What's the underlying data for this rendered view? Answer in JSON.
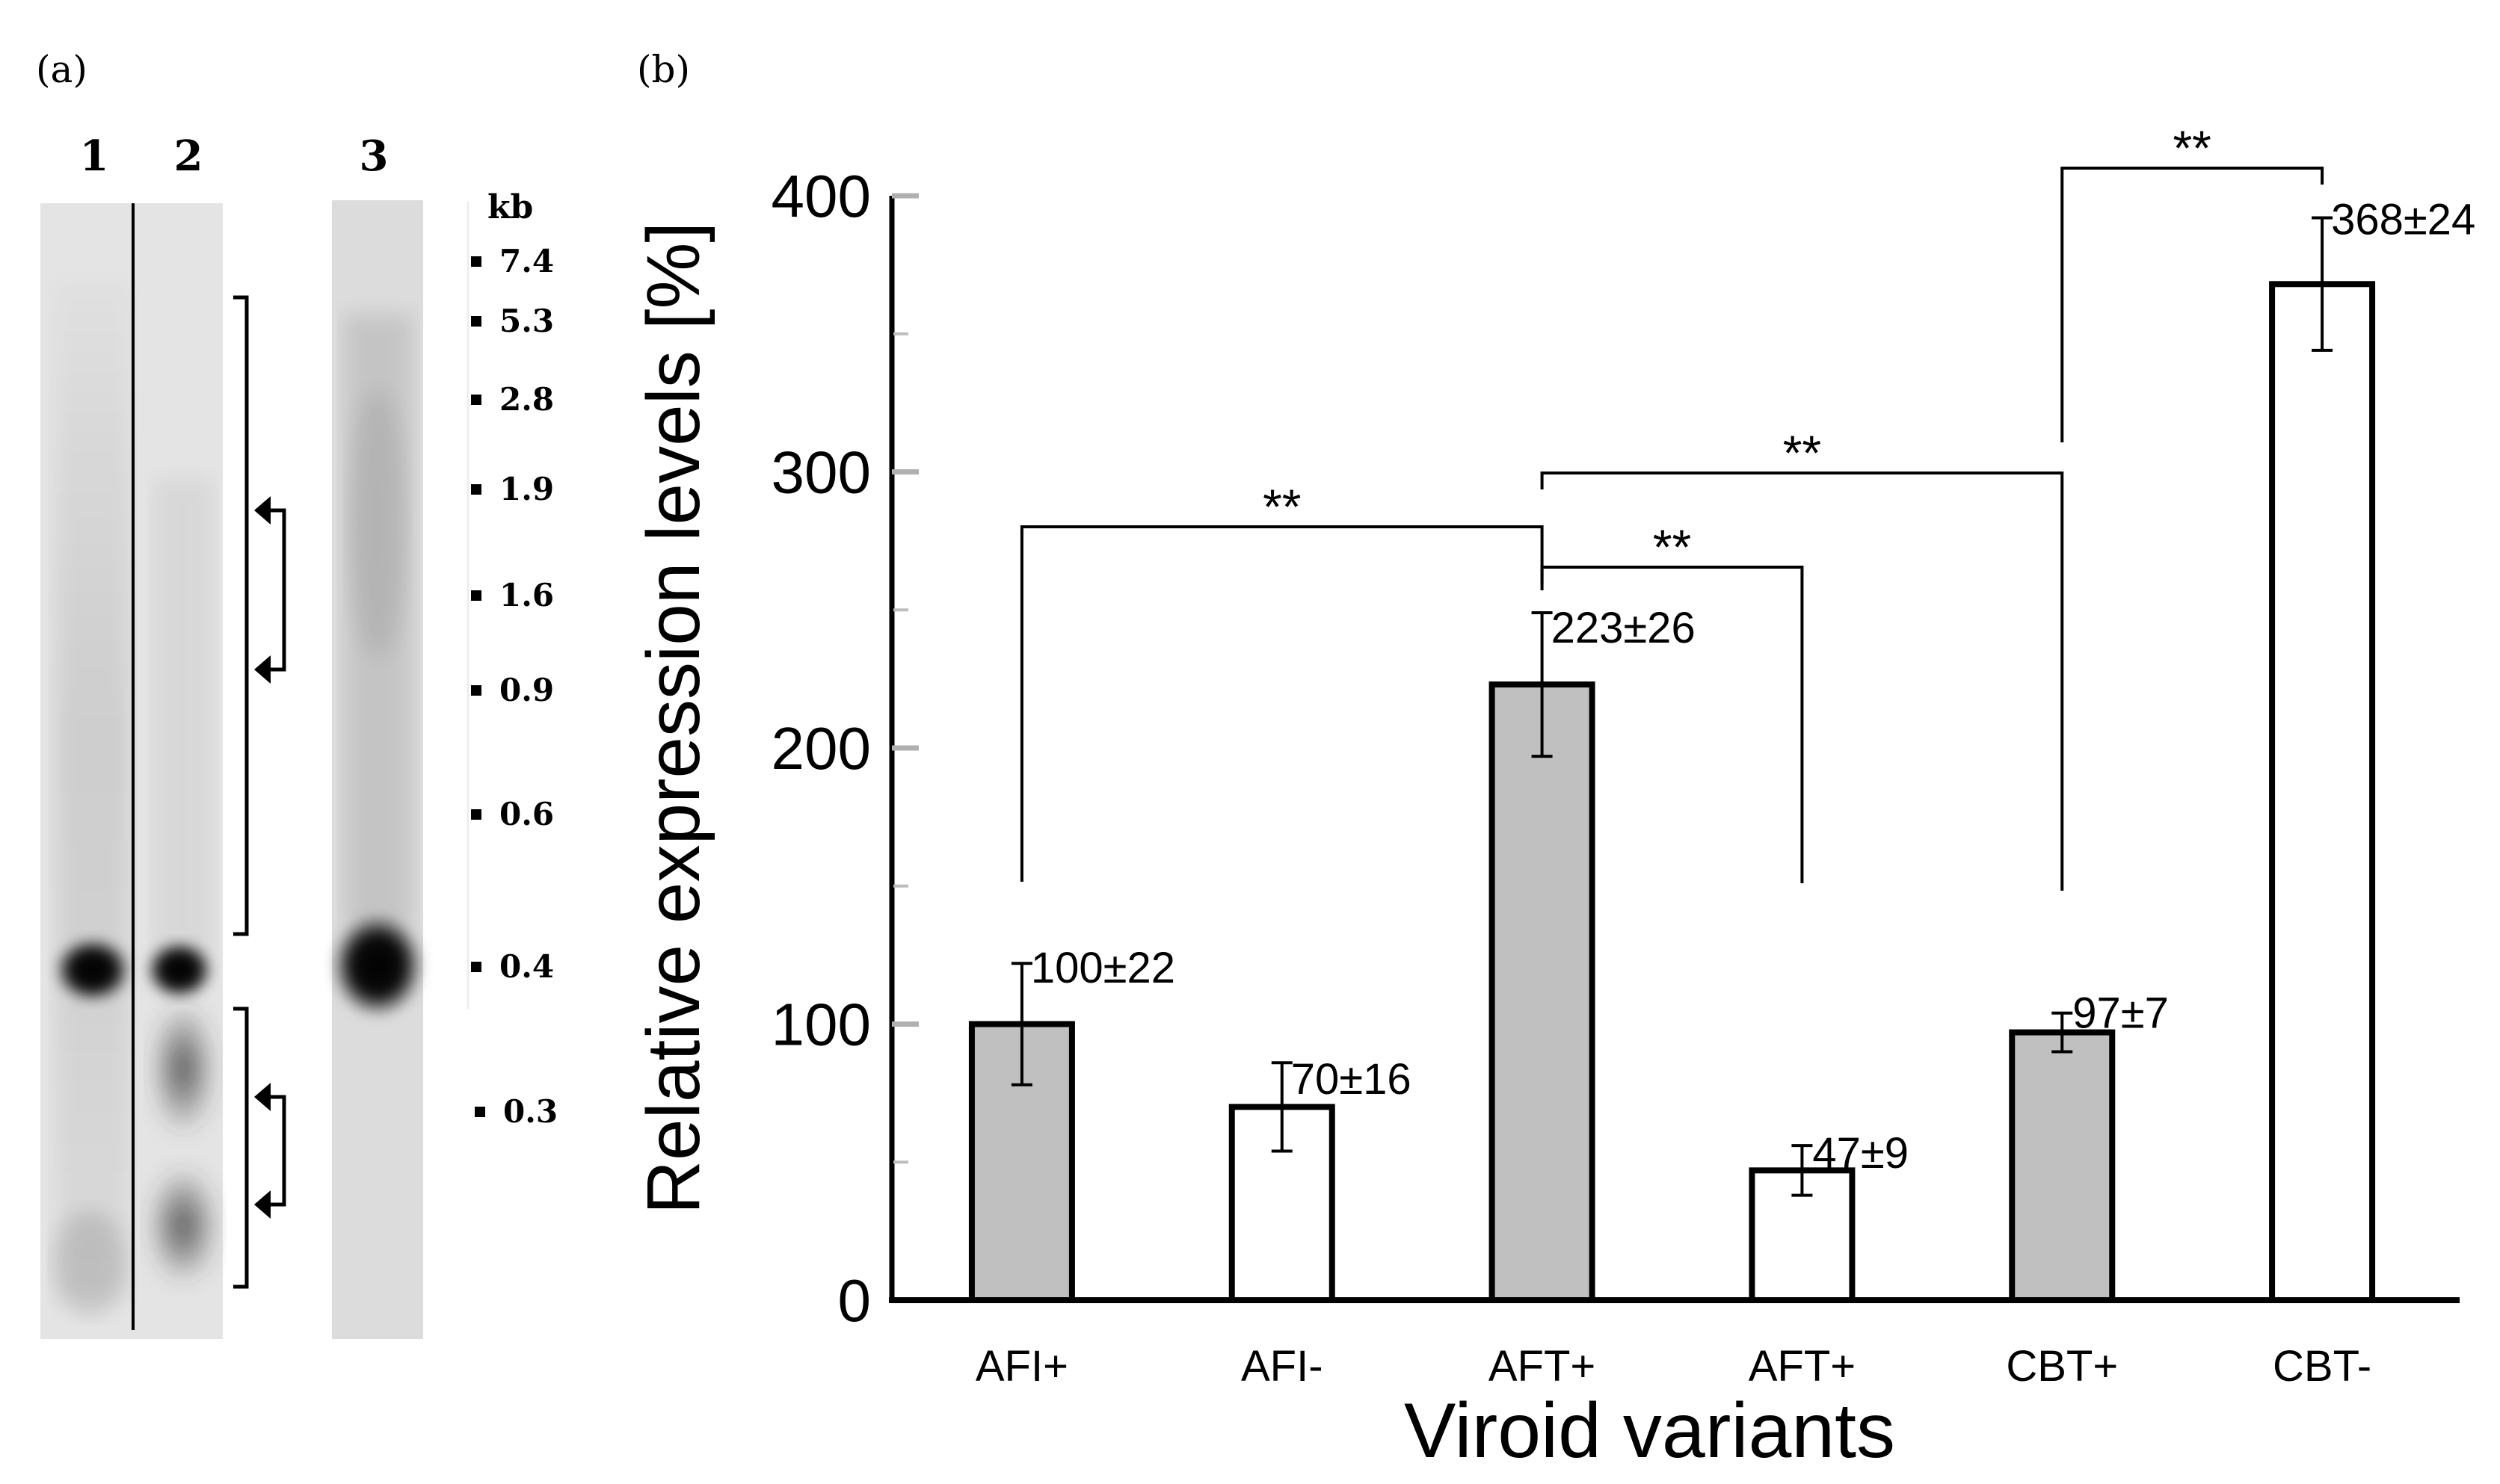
{
  "panel_a": {
    "label": "(a)",
    "lanes": [
      "1",
      "2",
      "3"
    ],
    "size_unit": "kb",
    "markers": [
      "7.4",
      "5.3",
      "2.8",
      "1.9",
      "1.6",
      "0.9",
      "0.6",
      "0.4",
      "0.3"
    ]
  },
  "panel_b": {
    "label": "(b)"
  },
  "chart_data": {
    "type": "bar",
    "title": "",
    "xlabel": "Viroid variants",
    "ylabel": "Relative expression levels [%]",
    "ylim": [
      0,
      400
    ],
    "yticks": [
      0,
      100,
      200,
      300,
      400
    ],
    "minor_ytick_step": 50,
    "grid": false,
    "legend": "none",
    "categories": [
      "AFI+",
      "AFI-",
      "AFT+",
      "AFT+",
      "CBT+",
      "CBT-"
    ],
    "values": [
      100,
      70,
      223,
      47,
      97,
      368
    ],
    "errors": [
      22,
      16,
      26,
      9,
      7,
      24
    ],
    "fills": [
      "#c0c0c0",
      "#ffffff",
      "#c0c0c0",
      "#ffffff",
      "#c0c0c0",
      "#ffffff"
    ],
    "data_labels": [
      "100±22",
      "70±16",
      "223±26",
      "47±9",
      "97±7",
      "368±24"
    ],
    "significance": [
      {
        "from": 0,
        "to": 2,
        "label": "**"
      },
      {
        "from": 2,
        "to": 3,
        "label": "**"
      },
      {
        "from": 2,
        "to": 4,
        "label": "**"
      },
      {
        "from": 4,
        "to": 5,
        "label": "**"
      }
    ]
  }
}
